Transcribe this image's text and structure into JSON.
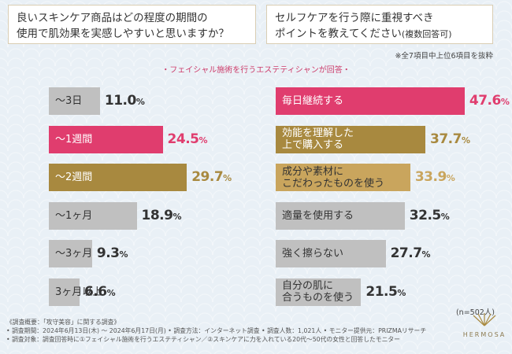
{
  "questions": {
    "left": {
      "line1": "良いスキンケア商品はどの程度の期間の",
      "line2": "使用で肌効果を実感しやすいと思いますか？"
    },
    "right": {
      "line1": "セルフケアを行う際に重視すべき",
      "line2": "ポイントを教えてください",
      "line2_small": "(複数回答可)"
    }
  },
  "note_top": "※全7項目中上位6項目を抜粋",
  "subtitle": "・フェイシャル施術を行うエステティシャンが回答・",
  "n_note": "(n=502人)",
  "colors": {
    "pink": "#e03d6e",
    "gold": "#a8893f",
    "tan": "#c9a55d",
    "gray": "#c0c0c0"
  },
  "chart_data": [
    {
      "type": "bar",
      "orientation": "horizontal",
      "title": "良いスキンケア商品はどの程度の期間の使用で肌効果を実感しやすいと思いますか？",
      "unit": "%",
      "categories": [
        "～3日",
        "～1週間",
        "～2週間",
        "～1ヶ月",
        "～3ヶ月",
        "3ヶ月以上"
      ],
      "values": [
        11.0,
        24.5,
        29.7,
        18.9,
        9.3,
        6.6
      ],
      "colors": [
        "gray",
        "pink",
        "gold",
        "gray",
        "gray",
        "gray"
      ],
      "xlim": [
        0,
        30
      ]
    },
    {
      "type": "bar",
      "orientation": "horizontal",
      "title": "セルフケアを行う際に重視すべきポイントを教えてください(複数回答可)",
      "unit": "%",
      "categories": [
        "毎日継続する",
        "効能を理解した上で購入する",
        "成分や素材にこだわったものを使う",
        "適量を使用する",
        "強く擦らない",
        "自分の肌に合うものを使う"
      ],
      "category_lines": [
        [
          "毎日継続する"
        ],
        [
          "効能を理解した",
          "上で購入する"
        ],
        [
          "成分や素材に",
          "こだわったものを使う"
        ],
        [
          "適量を使用する"
        ],
        [
          "強く擦らない"
        ],
        [
          "自分の肌に",
          "合うものを使う"
        ]
      ],
      "values": [
        47.6,
        37.7,
        33.9,
        32.5,
        27.7,
        21.5
      ],
      "colors": [
        "pink",
        "gold",
        "tan",
        "gray",
        "gray",
        "gray"
      ],
      "xlim": [
        0,
        50
      ]
    }
  ],
  "footer": {
    "line1": "《調査概要：「攻守美容」に関する調査》",
    "line2": "• 調査期間：2024年6月13日(木) ～ 2024年6月17日(月) • 調査方法：インターネット調査 • 調査人数：1,021人 • モニター提供元：PRIZMAリサーチ",
    "line3": "• 調査対象：調査回答時に①フェイシャル施術を行うエステティシャン／②スキンケアに力を入れている20代～50代の女性と回答したモニター"
  },
  "brand": "HERMOSA"
}
